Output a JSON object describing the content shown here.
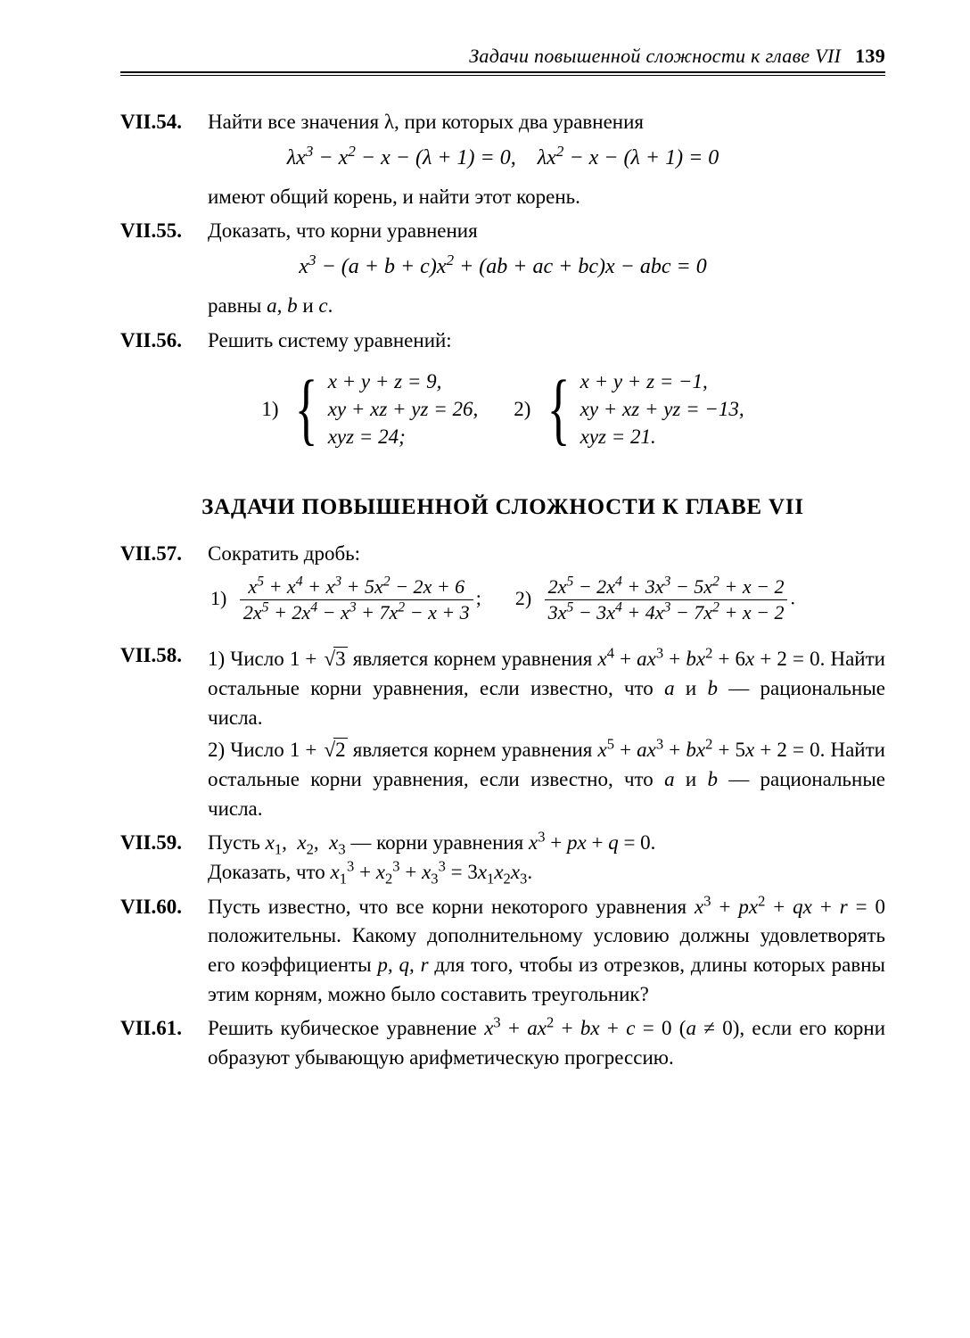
{
  "header": {
    "running_title": "Задачи повышенной сложности к главе VII",
    "page_number": "139"
  },
  "colors": {
    "text": "#000000",
    "background": "#ffffff",
    "rule": "#000000"
  },
  "typography": {
    "body_fontsize_pt": 17,
    "label_fontsize_pt": 17,
    "title_fontsize_pt": 19,
    "font_family": "Georgia / Times New Roman (serif)"
  },
  "problems": {
    "p54": {
      "label": "VII.54.",
      "intro": "Найти все значения λ, при которых два уравнения",
      "math": "λx³ − x² − x − (λ + 1) = 0,   λx² − x − (λ + 1) = 0",
      "after": "имеют общий корень, и найти этот корень."
    },
    "p55": {
      "label": "VII.55.",
      "intro": "Доказать, что корни уравнения",
      "math": "x³ − (a + b + c)x² + (ab + ac + bc)x − abc = 0",
      "after_pre": "равны ",
      "after_vars": "a, b",
      "after_mid": " и ",
      "after_c": "c",
      "after_end": "."
    },
    "p56": {
      "label": "VII.56.",
      "intro": "Решить систему уравнений:",
      "sys1": {
        "num": "1)",
        "lines": [
          "x + y + z = 9,",
          "xy + xz + yz = 26,",
          "xyz = 24;"
        ]
      },
      "sys2": {
        "num": "2)",
        "lines": [
          "x + y + z = −1,",
          "xy + xz + yz = −13,",
          "xyz = 21."
        ]
      }
    },
    "section_title": "ЗАДАЧИ ПОВЫШЕННОЙ СЛОЖНОСТИ К ГЛАВЕ VII",
    "p57": {
      "label": "VII.57.",
      "intro": "Сократить дробь:",
      "item1": {
        "lead": "1)",
        "num": "x⁵ + x⁴ + x³ + 5x² − 2x + 6",
        "den": "2x⁵ + 2x⁴ − x³ + 7x² − x + 3",
        "tail": ";"
      },
      "item2": {
        "lead": "2)",
        "num": "2x⁵ − 2x⁴ + 3x³ − 5x² + x − 2",
        "den": "3x⁵ − 3x⁴ + 4x³ − 7x² + x − 2",
        "tail": "."
      }
    },
    "p58": {
      "label": "VII.58.",
      "item1_a": "1) Число   1 + ",
      "item1_root": "3",
      "item1_b": "   является   корнем   уравнения",
      "item1_line2": "x⁴ + ax³ + bx² + 6x + 2 = 0. Найти остальные корни уравнения, если известно, что a и b — рациональные числа.",
      "item2_a": "2) Число   1 + ",
      "item2_root": "2",
      "item2_b": "   является   корнем   уравнения",
      "item2_line2": "x⁵ + ax³ + bx² + 5x + 2 = 0. Найти остальные корни уравнения, если известно, что a и b — рациональные числа."
    },
    "p59": {
      "label": "VII.59.",
      "line1_a": "Пусть ",
      "line1_vars": "x₁,  x₂,  x₃",
      "line1_b": " — корни уравнения ",
      "line1_eq": "x³ + px + q = 0.",
      "line2_a": "Доказать, что ",
      "line2_eq": "x₁³ + x₂³ + x₃³ = 3x₁x₂x₃."
    },
    "p60": {
      "label": "VII.60.",
      "text_a": "Пусть известно, что все корни некоторого уравнения ",
      "eq": "x³ + px² + qx + r = 0",
      "text_b": " положительны. Какому дополнительному условию должны удовлетворять его коэффициенты ",
      "vars": "p, q, r",
      "text_c": " для того, чтобы из отрезков, длины которых равны этим корням, можно было составить треугольник?"
    },
    "p61": {
      "label": "VII.61.",
      "text_a": "Решить кубическое уравнение ",
      "eq": "x³ + ax² + bx + c = 0 (a ≠ 0)",
      "text_b": ", если его корни образуют убывающую арифметическую прогрессию."
    }
  }
}
